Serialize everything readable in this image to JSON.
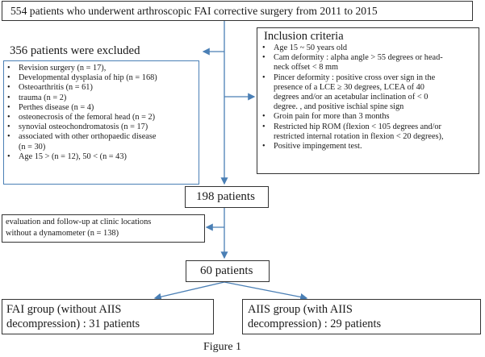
{
  "top_box": {
    "text": "554 patients who underwent arthroscopic FAI corrective surgery from 2011 to 2015"
  },
  "excluded": {
    "title": "356 patients were excluded",
    "items": [
      [
        "Revision surgery (n = 17),"
      ],
      [
        "Developmental dysplasia of hip (n = 168)"
      ],
      [
        "Osteoarthritis (n = 61)"
      ],
      [
        "trauma (n = 2)"
      ],
      [
        "Perthes disease (n = 4)"
      ],
      [
        "osteonecrosis of the femoral head (n = 2)"
      ],
      [
        "synovial osteochondromatosis (n = 17)"
      ],
      [
        "associated with other orthopaedic disease",
        "(n = 30)"
      ],
      [
        "Age 15 > (n = 12),  50 < (n = 43)"
      ]
    ]
  },
  "inclusion": {
    "title": "Inclusion criteria",
    "items": [
      [
        "Age 15 ~ 50 years old"
      ],
      [
        "Cam deformity : alpha angle > 55 degrees or head-",
        "neck offset < 8 mm"
      ],
      [
        "Pincer deformity : positive cross over sign in the",
        "presence of a LCE ≥  30 degrees, LCEA of 40",
        "degrees and/or an acetabular inclination of < 0",
        "degree. , and positive ischial spine sign"
      ],
      [
        "Groin  pain for more than 3 months"
      ],
      [
        "Restricted hip ROM (flexion < 105 degrees and/or",
        "restricted internal rotation in flexion < 20 degrees),"
      ],
      [
        "Positive impingement test."
      ]
    ]
  },
  "patients_198": {
    "text": "198 patients"
  },
  "dynamometer_box": {
    "lines": [
      "evaluation and follow-up at clinic locations",
      "without a dynamometer (n = 138)"
    ]
  },
  "patients_60": {
    "text": "60 patients"
  },
  "fai_group": {
    "lines": [
      "FAI group (without AIIS",
      "decompression) : 31 patients"
    ]
  },
  "aiis_group": {
    "lines": [
      "AIIS group (with AIIS",
      "decompression) : 29 patients"
    ]
  },
  "caption": "Figure 1",
  "colors": {
    "arrow": "#4a7fb5",
    "box_border": "#333333",
    "excluded_border": "#4a7fb5"
  }
}
